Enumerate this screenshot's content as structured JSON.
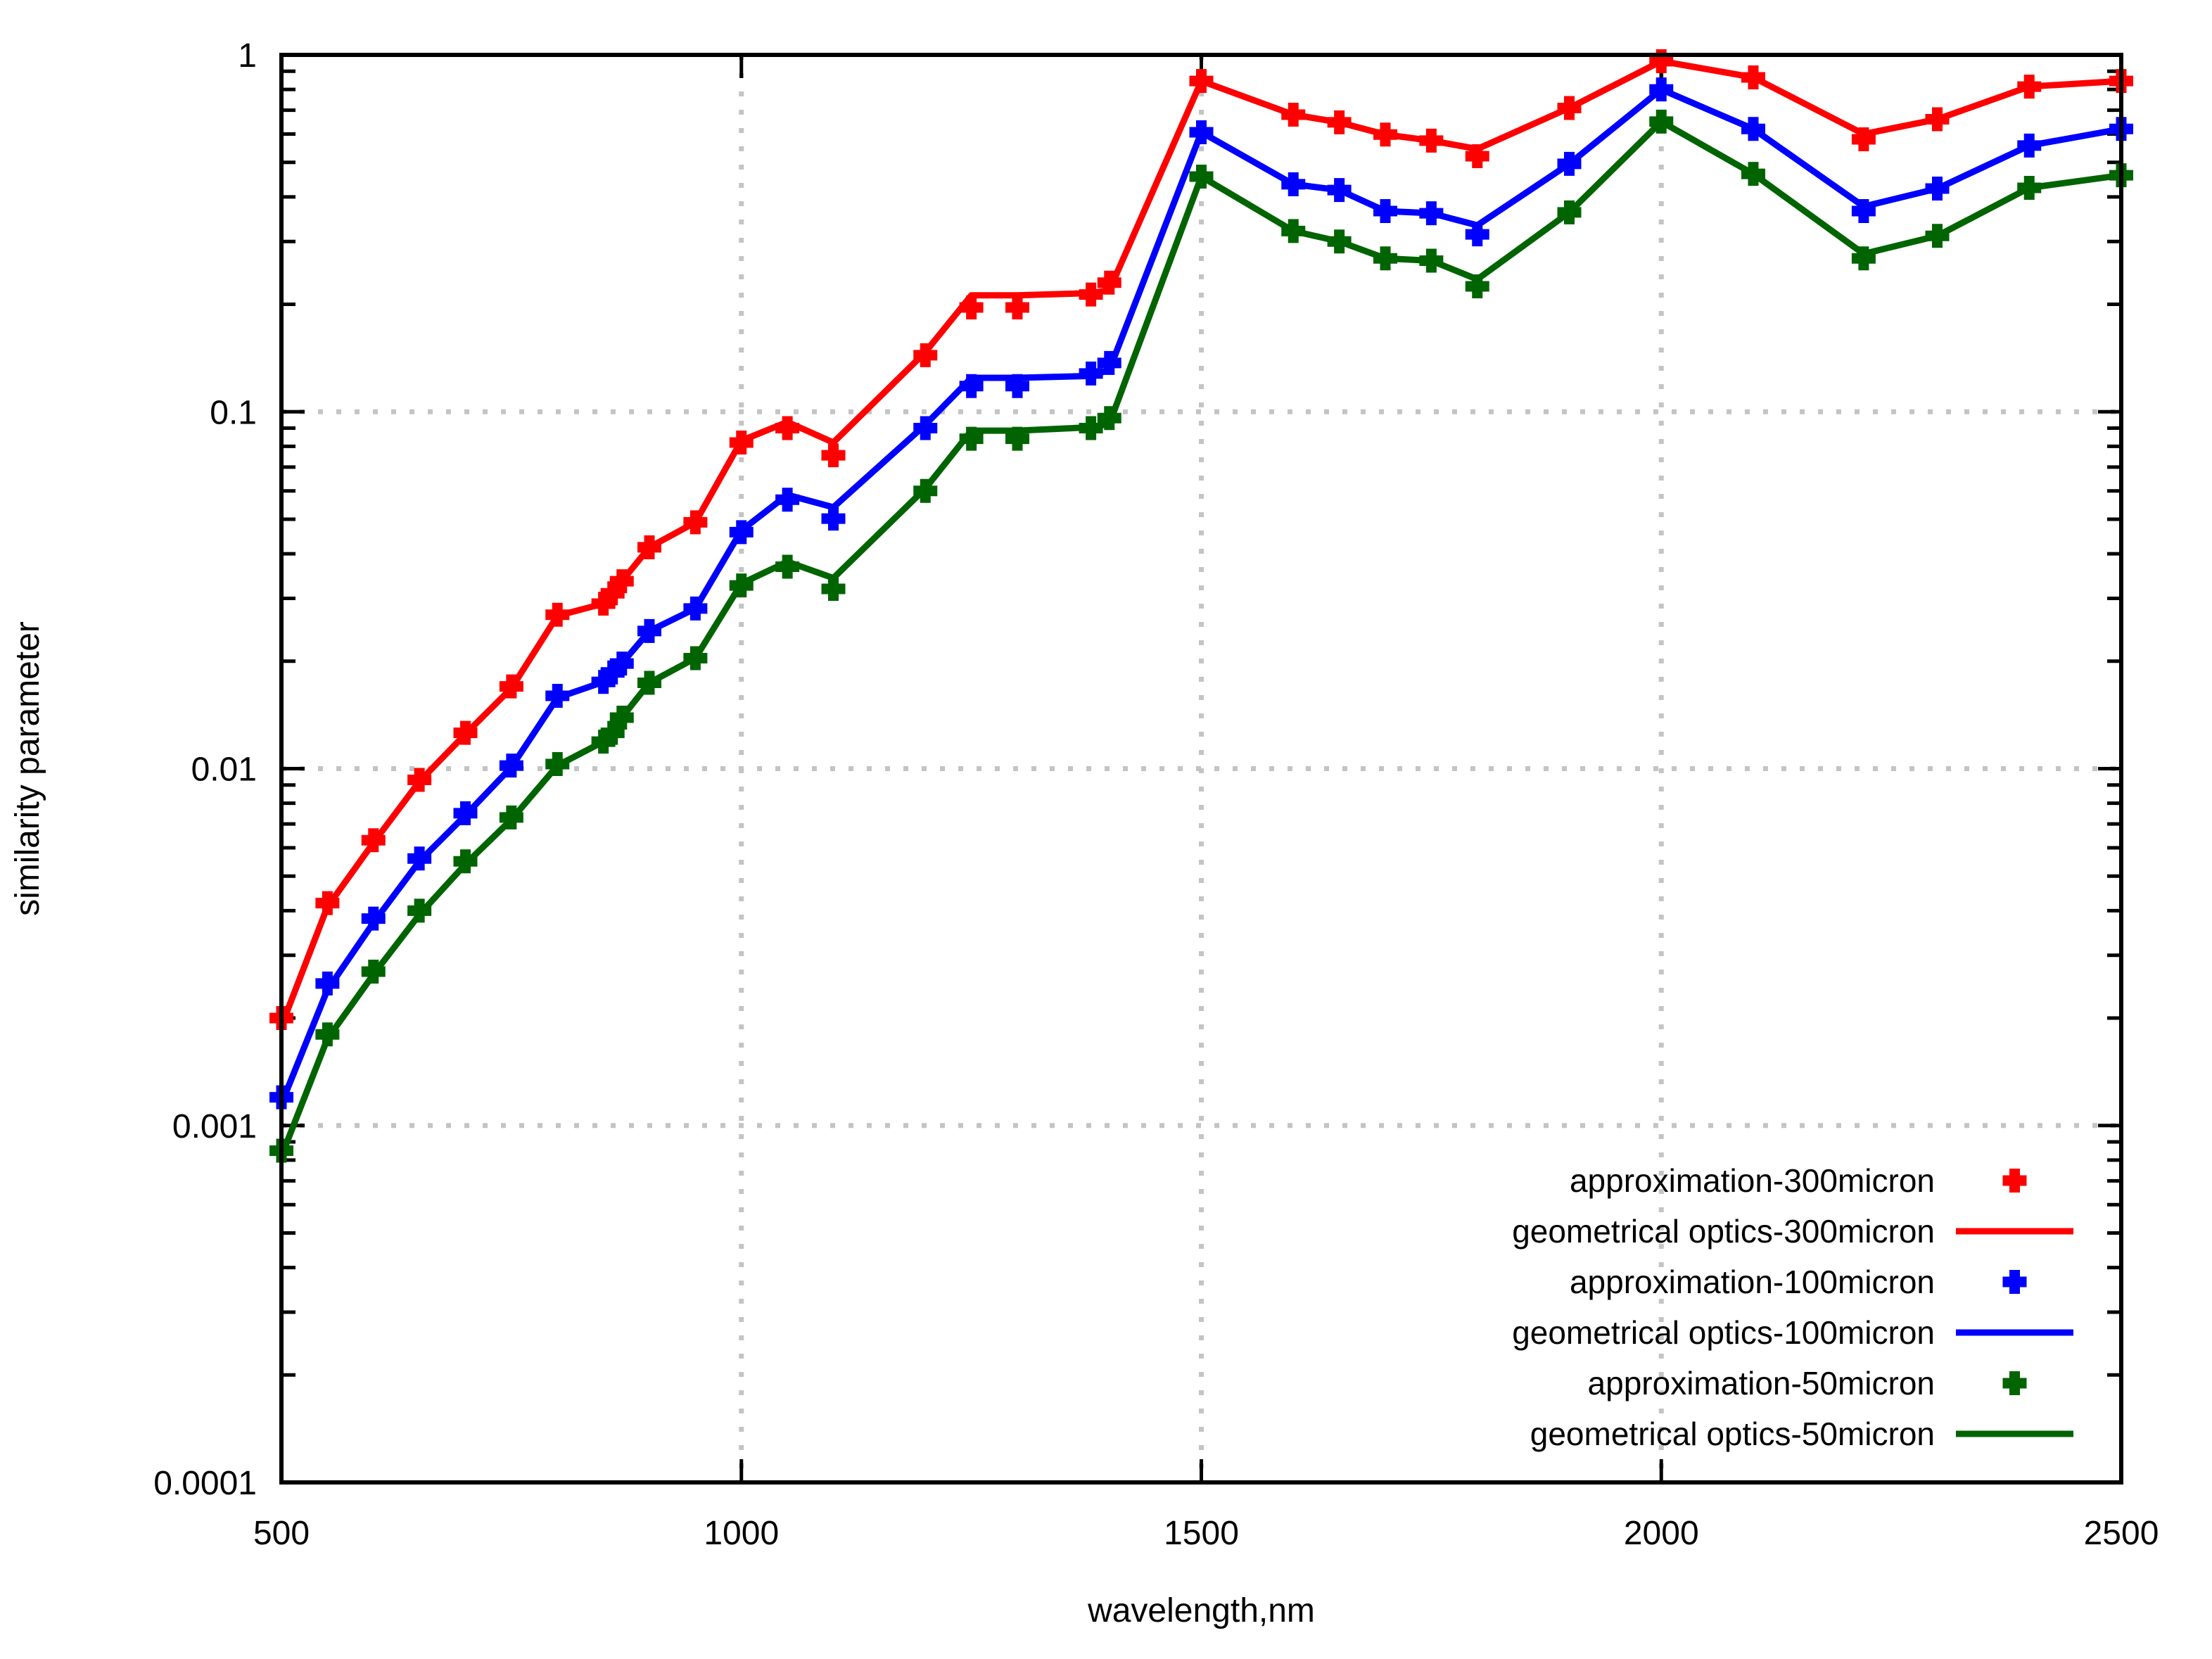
{
  "chart_data": {
    "type": "line",
    "title": "",
    "xlabel": "wavelength,nm",
    "ylabel": "similarity parameter",
    "xlim": [
      500,
      2500
    ],
    "ylim": [
      0.0001,
      1
    ],
    "y_scale": "log10",
    "grid": "dotted-major",
    "legend_position": "inside-bottom-right",
    "x_ticks": [
      500,
      1000,
      1500,
      2000,
      2500
    ],
    "x_tick_labels": [
      "500",
      "1000",
      "1500",
      "2000",
      "2500"
    ],
    "y_ticks": [
      1,
      0.1,
      0.01,
      0.001,
      0.0001
    ],
    "y_tick_labels": [
      "1",
      "0.1",
      "0.01",
      "0.001",
      "0.0001"
    ],
    "x": [
      500,
      550,
      600,
      650,
      700,
      750,
      800,
      850,
      860,
      870,
      900,
      950,
      1000,
      1050,
      1100,
      1200,
      1250,
      1300,
      1380,
      1400,
      1500,
      1600,
      1650,
      1700,
      1750,
      1800,
      1900,
      2000,
      2100,
      2220,
      2300,
      2400,
      2500
    ],
    "series": [
      {
        "name": "approximation-300micron",
        "style": "points",
        "color": "#ff0000",
        "values": [
          0.002,
          0.0042,
          0.0063,
          0.0093,
          0.0126,
          0.017,
          0.027,
          0.029,
          0.031,
          0.0335,
          0.0417,
          0.049,
          0.082,
          0.09,
          0.0755,
          0.144,
          0.196,
          0.196,
          0.213,
          0.23,
          0.845,
          0.68,
          0.647,
          0.598,
          0.575,
          0.52,
          0.71,
          0.96,
          0.865,
          0.58,
          0.66,
          0.815,
          0.845
        ]
      },
      {
        "name": "geometrical optics-300micron",
        "style": "line",
        "color": "#ff0000",
        "values": [
          0.0019,
          0.0041,
          0.0062,
          0.0092,
          0.0125,
          0.0168,
          0.0268,
          0.029,
          0.031,
          0.0335,
          0.0417,
          0.049,
          0.083,
          0.0936,
          0.082,
          0.147,
          0.212,
          0.212,
          0.215,
          0.219,
          0.845,
          0.68,
          0.647,
          0.598,
          0.575,
          0.545,
          0.71,
          0.96,
          0.865,
          0.6,
          0.66,
          0.815,
          0.845
        ]
      },
      {
        "name": "approximation-100micron",
        "style": "points",
        "color": "#0000ff",
        "values": [
          0.0012,
          0.0025,
          0.0038,
          0.0056,
          0.0075,
          0.0102,
          0.016,
          0.0175,
          0.0186,
          0.0197,
          0.0243,
          0.0281,
          0.046,
          0.0567,
          0.0502,
          0.09,
          0.118,
          0.118,
          0.128,
          0.137,
          0.607,
          0.434,
          0.418,
          0.365,
          0.36,
          0.314,
          0.495,
          0.8,
          0.62,
          0.365,
          0.422,
          0.557,
          0.62
        ]
      },
      {
        "name": "geometrical optics-100micron",
        "style": "line",
        "color": "#0000ff",
        "values": [
          0.00115,
          0.0024,
          0.0037,
          0.0055,
          0.0074,
          0.0101,
          0.0158,
          0.0175,
          0.0186,
          0.0197,
          0.0243,
          0.0281,
          0.0465,
          0.0585,
          0.054,
          0.092,
          0.1245,
          0.1245,
          0.126,
          0.131,
          0.607,
          0.434,
          0.418,
          0.365,
          0.36,
          0.333,
          0.495,
          0.8,
          0.62,
          0.376,
          0.422,
          0.557,
          0.62
        ]
      },
      {
        "name": "approximation-50micron",
        "style": "points",
        "color": "#006400",
        "values": [
          0.00085,
          0.0018,
          0.0027,
          0.004,
          0.0055,
          0.0073,
          0.0103,
          0.0119,
          0.0126,
          0.0139,
          0.0174,
          0.0204,
          0.0326,
          0.0368,
          0.0319,
          0.06,
          0.084,
          0.084,
          0.09,
          0.096,
          0.456,
          0.321,
          0.3,
          0.269,
          0.265,
          0.2246,
          0.362,
          0.65,
          0.464,
          0.269,
          0.311,
          0.424,
          0.46
        ]
      },
      {
        "name": "geometrical optics-50micron",
        "style": "line",
        "color": "#006400",
        "values": [
          0.00082,
          0.00175,
          0.00265,
          0.0039,
          0.0054,
          0.0072,
          0.0102,
          0.0119,
          0.0126,
          0.0139,
          0.0174,
          0.0204,
          0.033,
          0.038,
          0.0342,
          0.061,
          0.0885,
          0.0885,
          0.0905,
          0.0925,
          0.456,
          0.321,
          0.3,
          0.269,
          0.265,
          0.235,
          0.362,
          0.65,
          0.464,
          0.277,
          0.311,
          0.424,
          0.46
        ]
      }
    ],
    "colors": {
      "series_300micron": "#ff0000",
      "series_100micron": "#0000ff",
      "series_50micron": "#006400",
      "grid": "#c4c4c4",
      "axis": "#000000",
      "background": "#ffffff"
    }
  }
}
